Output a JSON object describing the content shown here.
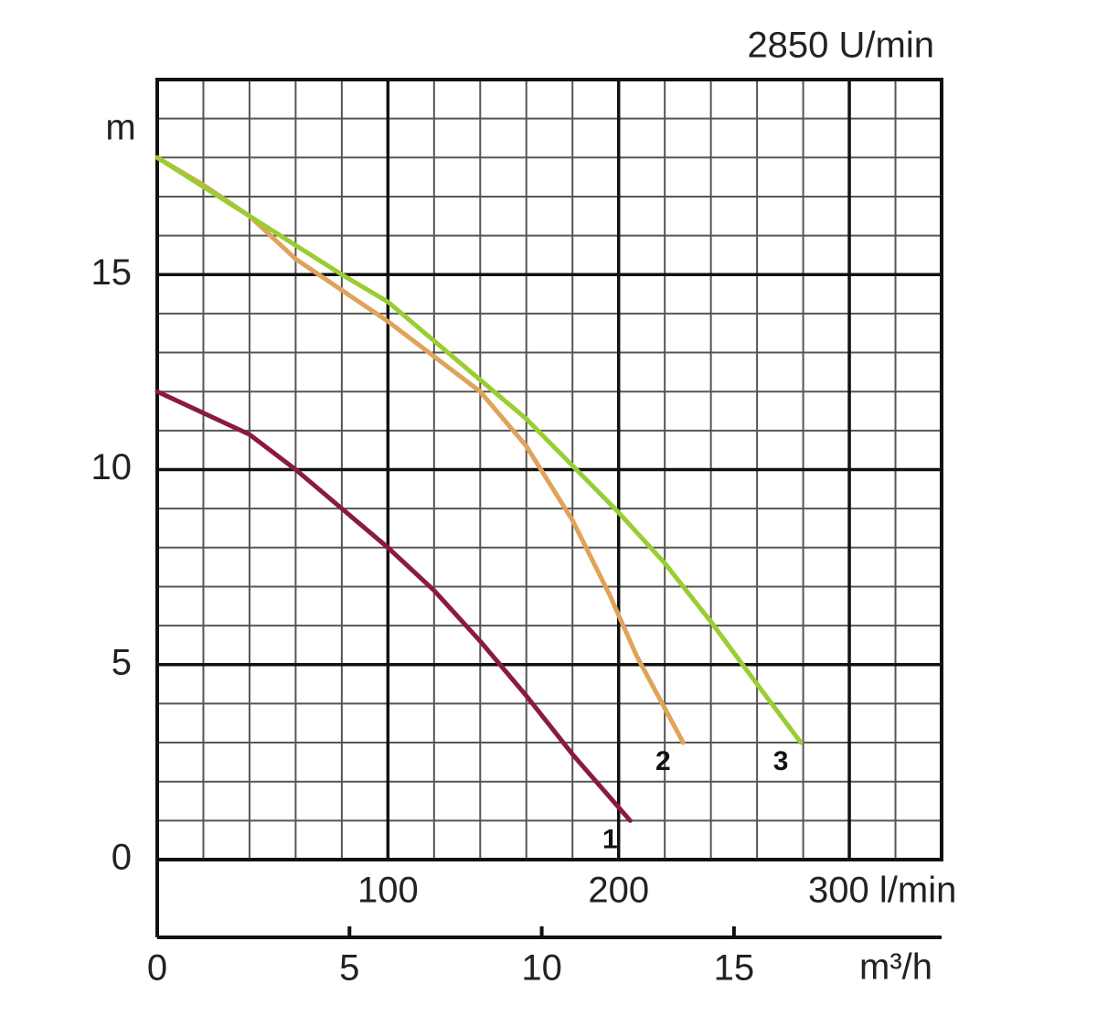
{
  "chart_data": {
    "type": "line",
    "title": "2850 U/min",
    "ylabel": "m",
    "x2label": "m³/h",
    "xlim": [
      0,
      340
    ],
    "ylim": [
      0,
      20
    ],
    "yticks": [
      0,
      5,
      10,
      15
    ],
    "xticks": [
      100,
      200,
      {
        "value": 300,
        "label": "300 l/min"
      }
    ],
    "yticks_minor": [
      1,
      2,
      3,
      4,
      6,
      7,
      8,
      9,
      11,
      12,
      13,
      14,
      16,
      17,
      18,
      19
    ],
    "xticks_minor": [
      20,
      40,
      60,
      80,
      120,
      140,
      160,
      180,
      220,
      240,
      260,
      280,
      320
    ],
    "x2lim": [
      0,
      20.4
    ],
    "x2ticks": [
      0,
      5,
      10,
      15
    ],
    "grid": true,
    "series": [
      {
        "name": "1",
        "color": "#8b1a3f",
        "x": [
          0,
          40,
          60,
          80,
          100,
          120,
          140,
          160,
          180,
          205
        ],
        "values": [
          12,
          10.9,
          10,
          9,
          8,
          6.9,
          5.6,
          4.2,
          2.7,
          1
        ]
      },
      {
        "name": "2",
        "color": "#e0a35a",
        "x": [
          0,
          20,
          40,
          60,
          80,
          100,
          120,
          140,
          160,
          180,
          196,
          208,
          228
        ],
        "values": [
          18,
          17.3,
          16.5,
          15.4,
          14.6,
          13.8,
          12.9,
          12,
          10.6,
          8.7,
          6.8,
          5.2,
          3
        ]
      },
      {
        "name": "3",
        "color": "#9acd32",
        "x": [
          0,
          40,
          80,
          100,
          120,
          140,
          160,
          180,
          200,
          220,
          240,
          260,
          279
        ],
        "values": [
          18,
          16.5,
          15,
          14.3,
          13.3,
          12.3,
          11.3,
          10.1,
          8.9,
          7.6,
          6.1,
          4.5,
          3
        ]
      }
    ]
  }
}
